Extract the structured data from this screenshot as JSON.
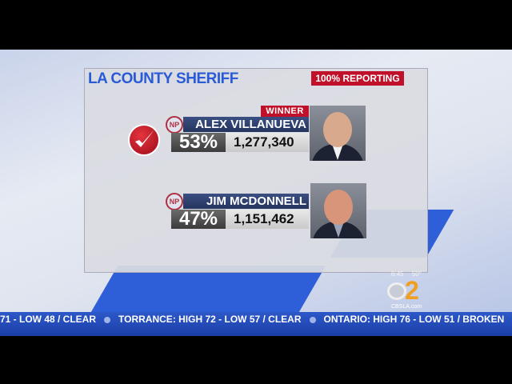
{
  "race_title": "LA COUNTY SHERIFF",
  "reporting": "100% REPORTING",
  "candidates": [
    {
      "party_badge": "NP",
      "name": "ALEX VILLANUEVA",
      "percent": "53%",
      "votes": "1,277,340",
      "winner_label": "WINNER",
      "winner": true
    },
    {
      "party_badge": "NP",
      "name": "JIM MCDONNELL",
      "percent": "47%",
      "votes": "1,151,462",
      "winner": false
    }
  ],
  "station": {
    "time": "6:45",
    "temperature": "50°",
    "logo_number": "2",
    "website": "CBSLA.com"
  },
  "ticker": [
    "71 - LOW 48 / CLEAR",
    "TORRANCE: HIGH 72 - LOW 57 / CLEAR",
    "ONTARIO: HIGH 76 - LOW 51 / BROKEN"
  ],
  "colors": {
    "title_blue": "#2a5bd7",
    "accent_red": "#c0102a",
    "ticker_blue": "#2d58c8"
  }
}
